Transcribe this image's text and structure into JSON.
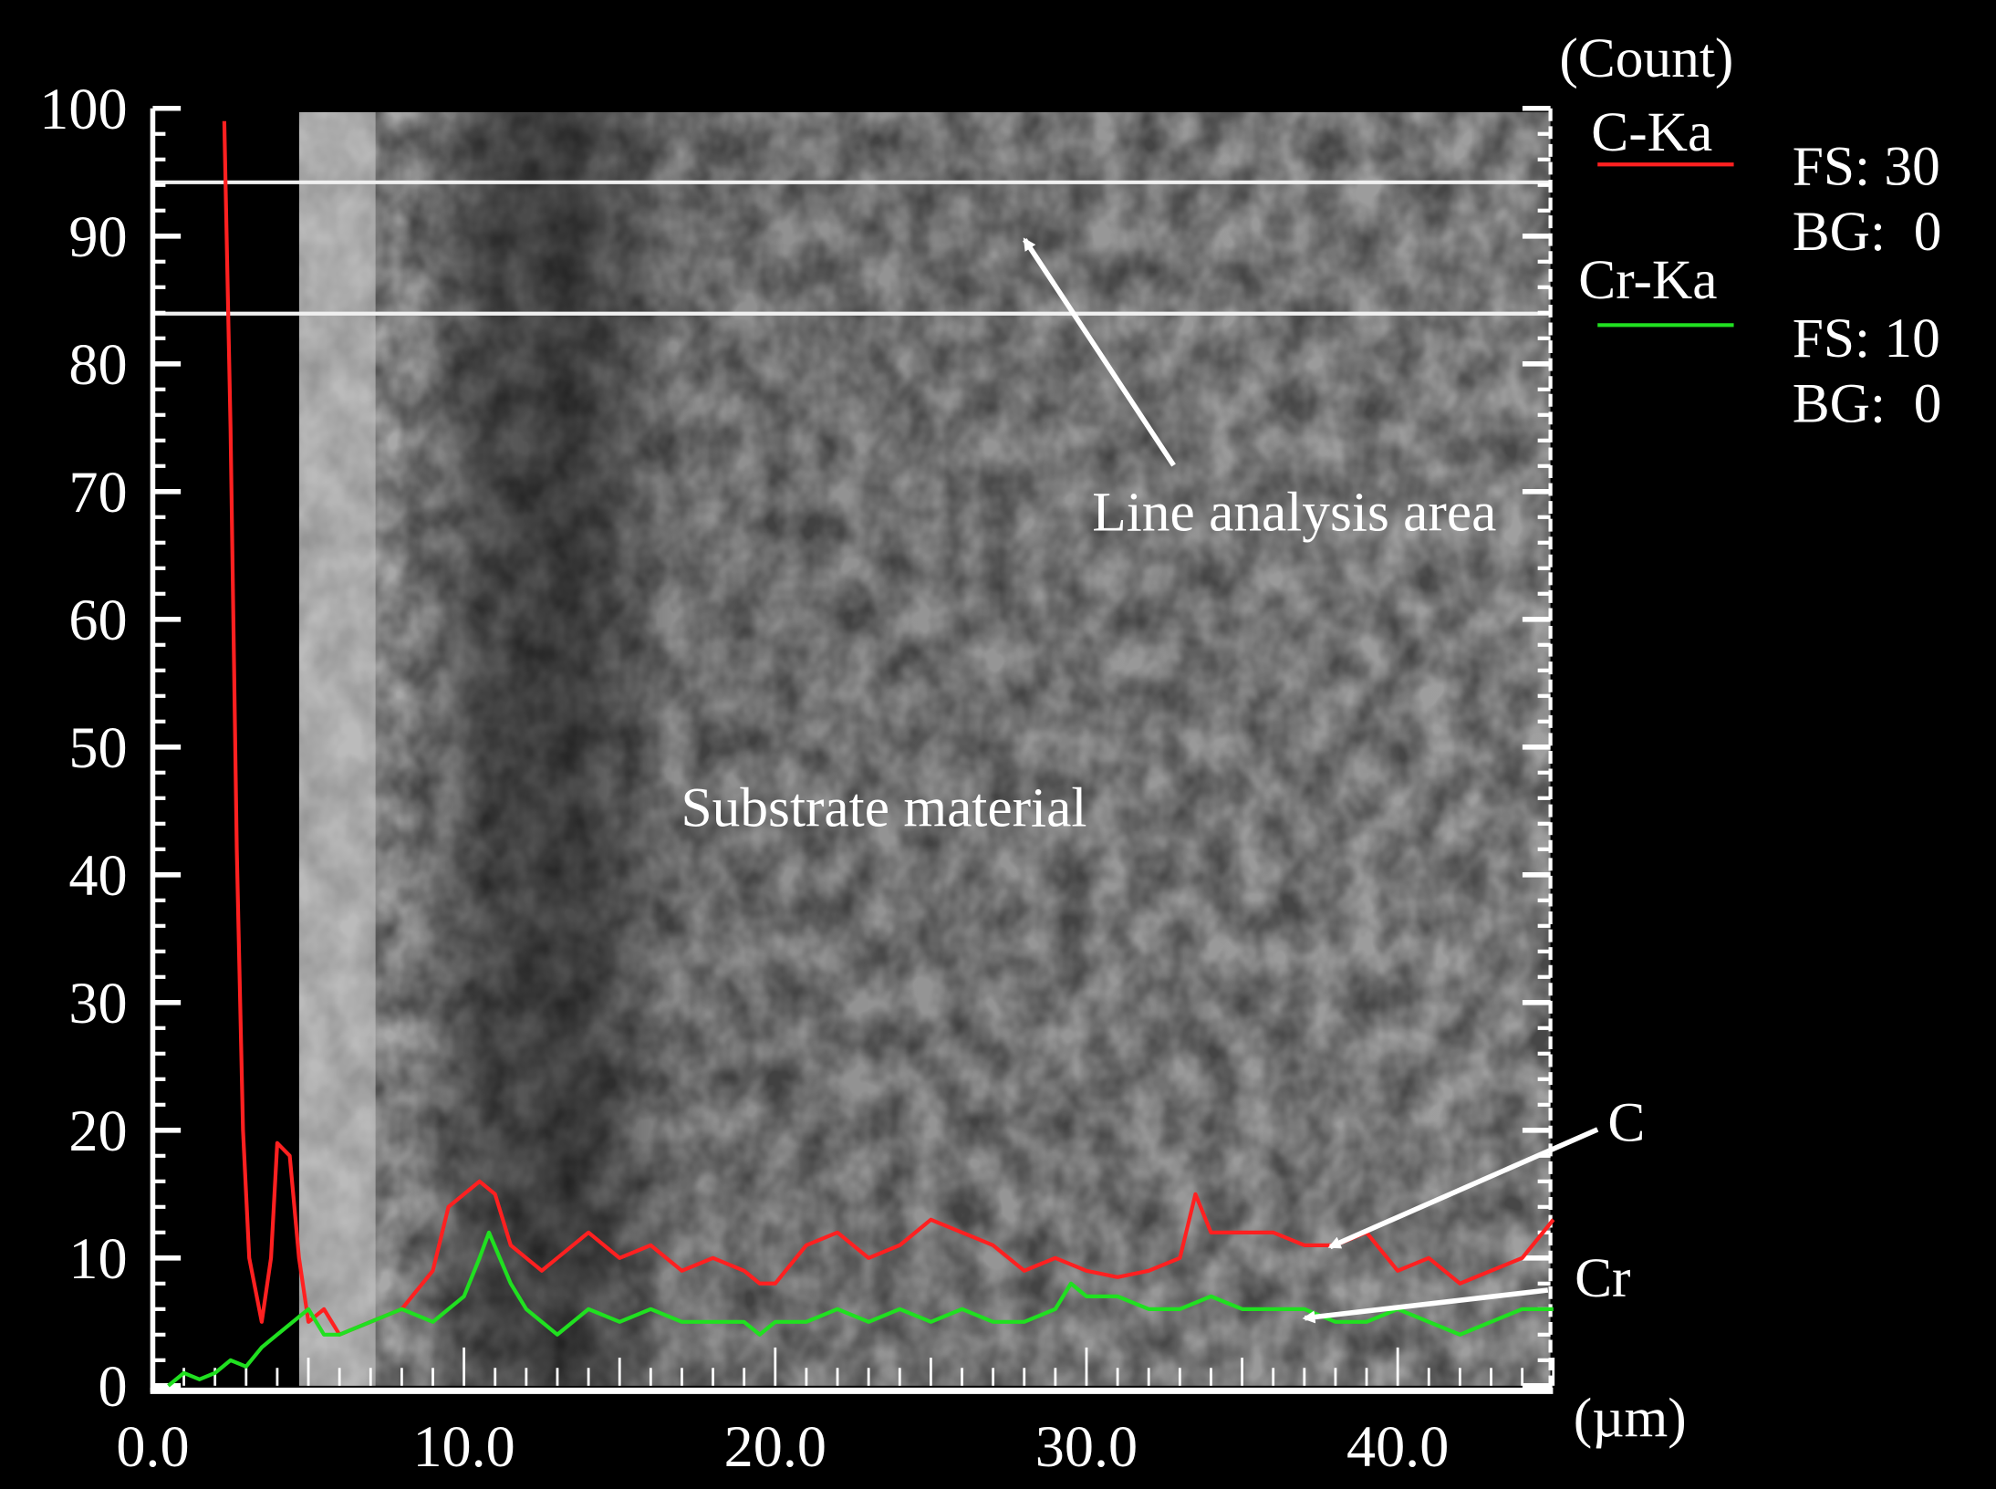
{
  "chart_data": {
    "type": "line",
    "title": "",
    "xlabel": "(µm)",
    "ylabel": "(Count)",
    "xlim": [
      0,
      45
    ],
    "ylim": [
      0,
      100
    ],
    "x_ticks": [
      "0.0",
      "10.0",
      "20.0",
      "30.0",
      "40.0"
    ],
    "x_tick_values": [
      0,
      10,
      20,
      30,
      40
    ],
    "y_ticks": [
      "0",
      "10",
      "20",
      "30",
      "40",
      "50",
      "60",
      "70",
      "80",
      "90",
      "100"
    ],
    "y_tick_values": [
      0,
      10,
      20,
      30,
      40,
      50,
      60,
      70,
      80,
      90,
      100
    ],
    "grid": false,
    "legend_placement": "right",
    "legend": [
      {
        "name": "C-Ka",
        "color": "#ff2020",
        "fs": "FS: 30",
        "bg": "BG:  0"
      },
      {
        "name": "Cr-Ka",
        "color": "#20e020",
        "fs": "FS: 10",
        "bg": "BG:  0"
      }
    ],
    "series": [
      {
        "name": "C-Ka",
        "color": "#ff2020",
        "x": [
          2.3,
          2.5,
          2.7,
          2.9,
          3.1,
          3.5,
          3.8,
          4.0,
          4.4,
          4.7,
          5.0,
          5.5,
          6.0,
          7.0,
          8.0,
          9.0,
          9.5,
          10.0,
          10.5,
          11.0,
          11.5,
          12.0,
          12.5,
          13.0,
          14.0,
          14.5,
          15.0,
          16.0,
          17.0,
          18.0,
          19.0,
          19.5,
          20.0,
          21.0,
          22.0,
          23.0,
          24.0,
          25.0,
          26.0,
          27.0,
          28.0,
          29.0,
          30.0,
          31.0,
          32.0,
          33.0,
          33.5,
          34.0,
          35.0,
          36.0,
          37.0,
          38.0,
          39.0,
          40.0,
          41.0,
          42.0,
          43.0,
          44.0,
          45.0
        ],
        "y": [
          99,
          75,
          42,
          20,
          10,
          5,
          10,
          19,
          18,
          10,
          5,
          6,
          4,
          5,
          6,
          9,
          14,
          15,
          16,
          15,
          11,
          10,
          9,
          10,
          12,
          11,
          10,
          11,
          9,
          10,
          9,
          8,
          8,
          11,
          12,
          10,
          11,
          13,
          12,
          11,
          9,
          10,
          9,
          8.5,
          9,
          10,
          15,
          12,
          12,
          12,
          11,
          11,
          12,
          9,
          10,
          8,
          9,
          10,
          13
        ]
      },
      {
        "name": "Cr-Ka",
        "color": "#20e020",
        "x": [
          0.5,
          1.0,
          1.5,
          2.0,
          2.5,
          3.0,
          3.5,
          4.0,
          4.5,
          5.0,
          5.5,
          6.0,
          7.0,
          8.0,
          9.0,
          10.0,
          10.5,
          10.8,
          11.5,
          12.0,
          13.0,
          14.0,
          15.0,
          16.0,
          17.0,
          18.0,
          19.0,
          19.5,
          20.0,
          21.0,
          22.0,
          23.0,
          24.0,
          25.0,
          26.0,
          27.0,
          28.0,
          29.0,
          29.5,
          30.0,
          31.0,
          32.0,
          33.0,
          34.0,
          35.0,
          36.0,
          37.0,
          38.0,
          39.0,
          40.0,
          41.0,
          42.0,
          43.0,
          44.0,
          45.0
        ],
        "y": [
          0,
          1,
          0.5,
          1,
          2,
          1.5,
          3,
          4,
          5,
          6,
          4,
          4,
          5,
          6,
          5,
          7,
          10,
          12,
          8,
          6,
          4,
          6,
          5,
          6,
          5,
          5,
          5,
          4,
          5,
          5,
          6,
          5,
          6,
          5,
          6,
          5,
          5,
          6,
          8,
          7,
          7,
          6,
          6,
          7,
          6,
          6,
          6,
          5,
          5,
          6,
          5,
          4,
          5,
          6,
          6
        ]
      }
    ],
    "annotations": {
      "line_area": "Line analysis area",
      "substrate": "Substrate material",
      "c_label": "C",
      "cr_label": "Cr"
    }
  }
}
